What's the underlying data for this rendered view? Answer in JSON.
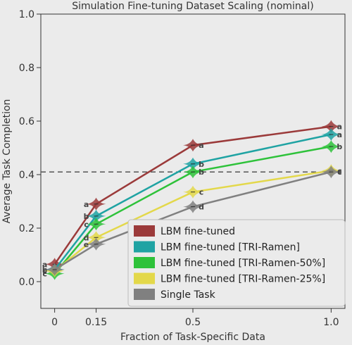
{
  "chart_data": {
    "type": "line",
    "title": "Simulation Fine-tuning Dataset Scaling (nominal)",
    "xlabel": "Fraction of Task-Specific Data",
    "ylabel": "Average Task Completion",
    "x": [
      0,
      0.15,
      0.5,
      1.0
    ],
    "x_tick_labels": [
      "0",
      "0.15",
      "0.5",
      "1.0"
    ],
    "y_ticks": [
      0.0,
      0.2,
      0.4,
      0.6,
      0.8,
      1.0
    ],
    "y_tick_labels": [
      "0.0",
      "0.2",
      "0.4",
      "0.6",
      "0.8",
      "1.0"
    ],
    "ylim": [
      -0.1,
      1.0
    ],
    "xlim": [
      -0.05,
      1.05
    ],
    "reference_line": 0.41,
    "legend_placement": "lower-right",
    "grid": false,
    "series": [
      {
        "name": "LBM fine-tuned",
        "color": "#9b3a3a",
        "values": [
          0.065,
          0.29,
          0.51,
          0.58
        ],
        "letters": [
          "a",
          "a",
          "a",
          "a"
        ]
      },
      {
        "name": "LBM fine-tuned [TRI-Ramen]",
        "color": "#1fa3a3",
        "values": [
          0.045,
          0.245,
          0.44,
          0.55
        ],
        "letters": [
          "b",
          "b",
          "b",
          "a"
        ]
      },
      {
        "name": "LBM fine-tuned [TRI-Ramen-50%]",
        "color": "#2ec23a",
        "values": [
          0.03,
          0.215,
          0.41,
          0.505
        ],
        "letters": [
          "c",
          "c",
          "b",
          "b"
        ]
      },
      {
        "name": "LBM fine-tuned [TRI-Ramen-25%]",
        "color": "#e3d84a",
        "values": [
          0.04,
          0.165,
          0.335,
          0.415
        ],
        "letters": [
          "c",
          "d",
          "c",
          "c"
        ]
      },
      {
        "name": "Single Task",
        "color": "#808080",
        "values": [
          0.045,
          0.14,
          0.28,
          0.41
        ],
        "letters": [
          "c",
          "e",
          "d",
          "c"
        ]
      }
    ]
  }
}
